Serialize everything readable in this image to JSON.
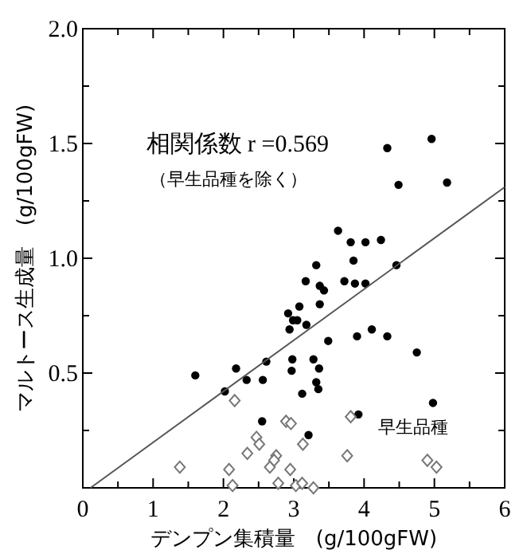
{
  "chart_data": {
    "type": "scatter",
    "xlabel": "デンプン集積量　(g/100gFW)",
    "ylabel": "マルトース生成量　(g/100gFW)",
    "annotations": [
      "相関係数 r =0.569",
      "（早生品種を除く）"
    ],
    "xlim": [
      0,
      6
    ],
    "ylim": [
      0,
      2.0
    ],
    "xticks": [
      0,
      {
        "value": 0.5,
        "label": null
      },
      1,
      {
        "value": 1.5,
        "label": null
      },
      2,
      {
        "value": 2.5,
        "label": null
      },
      3,
      {
        "value": 3.5,
        "label": null
      },
      4,
      {
        "value": 4.5,
        "label": null
      },
      5,
      {
        "value": 5.5,
        "label": null
      },
      6
    ],
    "yticks": [
      {
        "value": 0,
        "label": null
      },
      {
        "value": 0.25,
        "label": null
      },
      0.5,
      {
        "value": 0.75,
        "label": null
      },
      {
        "value": 1,
        "label": "1.0"
      },
      {
        "value": 1.25,
        "label": null
      },
      1.5,
      {
        "value": 1.75,
        "label": null
      },
      {
        "value": 2,
        "label": "2.0"
      }
    ],
    "grid": false,
    "legend": false,
    "series": [
      {
        "color": "#000000",
        "marker": "circle",
        "x": [
          4.33,
          4.96,
          4.49,
          5.18,
          3.63,
          3.81,
          4.02,
          4.24,
          3.32,
          3.85,
          4.46,
          3.17,
          3.72,
          3.87,
          4.02,
          3.37,
          3.43,
          3.37,
          2.92,
          3.08,
          2.99,
          3.05,
          2.94,
          3.18,
          3.49,
          3.9,
          4.11,
          4.33,
          4.75,
          1.6,
          2.18,
          2.61,
          2.98,
          3.28,
          2.97,
          3.36,
          2.33,
          2.56,
          3.32,
          3.35,
          2.02,
          3.12,
          4.98,
          3.92,
          2.55,
          3.21
        ],
        "values": [
          1.48,
          1.52,
          1.32,
          1.33,
          1.12,
          1.07,
          1.07,
          1.08,
          0.97,
          0.99,
          0.97,
          0.9,
          0.9,
          0.89,
          0.89,
          0.88,
          0.86,
          0.8,
          0.76,
          0.79,
          0.73,
          0.73,
          0.69,
          0.71,
          0.64,
          0.66,
          0.69,
          0.66,
          0.59,
          0.49,
          0.52,
          0.55,
          0.56,
          0.56,
          0.51,
          0.52,
          0.47,
          0.47,
          0.46,
          0.43,
          0.42,
          0.41,
          0.37,
          0.32,
          0.29,
          0.23
        ]
      },
      {
        "name": "早生品種",
        "color": "#777777",
        "marker": "diamond",
        "x": [
          2.16,
          3.81,
          2.89,
          2.96,
          2.47,
          2.51,
          3.13,
          2.34,
          2.75,
          2.72,
          2.66,
          3.76,
          1.38,
          2.08,
          2.95,
          4.9,
          5.03,
          2.13,
          2.78,
          3.03,
          3.12,
          3.28
        ],
        "values": [
          0.38,
          0.31,
          0.29,
          0.28,
          0.22,
          0.19,
          0.19,
          0.15,
          0.14,
          0.12,
          0.09,
          0.14,
          0.09,
          0.08,
          0.08,
          0.12,
          0.09,
          0.01,
          0.02,
          0.01,
          0.02,
          0.0
        ]
      },
      {
        "type": "line",
        "color": "#555555",
        "line_style": "solid",
        "x": [
          0.11,
          6
        ],
        "values": [
          0,
          1.31
        ]
      }
    ]
  }
}
